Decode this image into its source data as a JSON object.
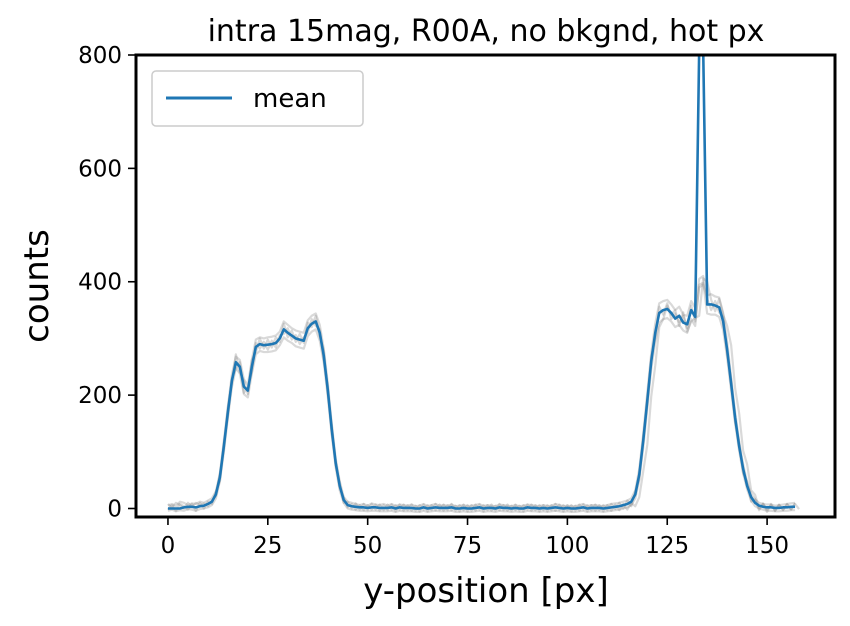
{
  "chart_data": {
    "type": "line",
    "title": "intra 15mag, R00A, no bkgnd, hot px",
    "xlabel": "y-position [px]",
    "ylabel": "counts",
    "xlim": [
      -8,
      167
    ],
    "ylim": [
      -15,
      800
    ],
    "xticks": [
      0,
      25,
      50,
      75,
      100,
      125,
      150
    ],
    "yticks": [
      0,
      200,
      400,
      600,
      800
    ],
    "grid": false,
    "legend": {
      "position": "top-left",
      "entries": [
        "mean"
      ]
    },
    "colors": {
      "mean": "#1f77b4",
      "individual": "#808080"
    },
    "series": [
      {
        "name": "mean",
        "x_start": 0,
        "x_step": 1,
        "values": [
          0,
          0,
          0,
          0,
          2,
          3,
          3,
          2,
          4,
          5,
          8,
          12,
          25,
          55,
          110,
          170,
          225,
          258,
          250,
          215,
          208,
          250,
          285,
          290,
          288,
          289,
          290,
          292,
          300,
          316,
          310,
          305,
          300,
          298,
          296,
          318,
          326,
          330,
          310,
          270,
          210,
          140,
          80,
          40,
          15,
          6,
          4,
          3,
          2,
          2,
          1,
          2,
          2,
          1,
          1,
          1,
          2,
          0,
          2,
          1,
          1,
          1,
          0,
          0,
          2,
          0,
          1,
          2,
          1,
          1,
          1,
          2,
          0,
          0,
          1,
          0,
          0,
          1,
          2,
          0,
          1,
          1,
          0,
          2,
          1,
          1,
          0,
          1,
          0,
          0,
          2,
          1,
          1,
          0,
          1,
          0,
          1,
          2,
          1,
          0,
          1,
          0,
          0,
          1,
          2,
          0,
          1,
          1,
          1,
          0,
          1,
          2,
          3,
          4,
          6,
          8,
          12,
          25,
          60,
          120,
          190,
          260,
          310,
          345,
          350,
          352,
          345,
          335,
          340,
          328,
          325,
          350,
          338,
          810,
          810,
          360,
          360,
          358,
          355,
          330,
          280,
          220,
          160,
          110,
          70,
          40,
          20,
          10,
          5,
          3,
          2,
          2,
          1,
          1,
          2,
          2,
          3,
          3
        ]
      },
      {
        "name": "",
        "x_start": 0,
        "x_step": 1,
        "values": [
          5,
          8,
          4,
          12,
          10,
          6,
          9,
          8,
          12,
          10,
          14,
          18,
          30,
          62,
          120,
          180,
          236,
          268,
          262,
          228,
          218,
          262,
          298,
          302,
          300,
          302,
          303,
          305,
          312,
          330,
          324,
          318,
          314,
          312,
          310,
          332,
          340,
          344,
          324,
          282,
          222,
          150,
          88,
          48,
          20,
          12,
          10,
          8,
          6,
          8,
          5,
          9,
          7,
          6,
          8,
          5,
          8,
          4,
          7,
          6,
          5,
          7,
          4,
          5,
          8,
          4,
          6,
          8,
          5,
          6,
          5,
          7,
          4,
          5,
          6,
          4,
          5,
          6,
          8,
          4,
          6,
          5,
          4,
          7,
          6,
          5,
          4,
          6,
          4,
          5,
          7,
          6,
          5,
          4,
          6,
          4,
          5,
          8,
          6,
          4,
          5,
          4,
          4,
          6,
          8,
          4,
          6,
          6,
          5,
          4,
          6,
          8,
          9,
          10,
          12,
          14,
          18,
          32,
          70,
          132,
          204,
          274,
          326,
          362,
          366,
          368,
          360,
          350,
          356,
          342,
          340,
          366,
          354,
          405,
          410,
          376,
          378,
          374,
          372,
          345,
          294,
          232,
          170,
          118,
          78,
          46,
          26,
          16,
          10,
          8,
          7,
          7,
          5,
          6,
          7,
          8,
          9,
          10
        ]
      },
      {
        "name": "",
        "x_start": 0,
        "x_step": 1,
        "values": [
          -4,
          -2,
          -5,
          -3,
          -4,
          -1,
          -2,
          -4,
          -1,
          0,
          2,
          6,
          18,
          48,
          100,
          160,
          214,
          248,
          238,
          202,
          196,
          238,
          272,
          278,
          276,
          276,
          277,
          279,
          288,
          302,
          296,
          292,
          286,
          284,
          282,
          304,
          312,
          316,
          296,
          258,
          198,
          130,
          72,
          32,
          10,
          0,
          -2,
          -3,
          -4,
          -4,
          -5,
          -4,
          -4,
          -5,
          -5,
          -5,
          -4,
          -6,
          -4,
          -5,
          -5,
          -5,
          -6,
          -6,
          -4,
          -6,
          -5,
          -4,
          -5,
          -5,
          -5,
          -4,
          -6,
          -6,
          -5,
          -6,
          -6,
          -5,
          -4,
          -6,
          -5,
          -5,
          -6,
          -4,
          -5,
          -5,
          -6,
          -5,
          -6,
          -6,
          -4,
          -5,
          -5,
          -6,
          -5,
          -6,
          -5,
          -4,
          -5,
          -6,
          -5,
          -6,
          -6,
          -5,
          -4,
          -6,
          -5,
          -5,
          -5,
          -6,
          -5,
          -4,
          -3,
          -2,
          0,
          2,
          6,
          18,
          50,
          108,
          176,
          246,
          294,
          328,
          334,
          336,
          330,
          320,
          324,
          314,
          310,
          334,
          322,
          395,
          398,
          344,
          342,
          342,
          338,
          315,
          266,
          208,
          150,
          102,
          62,
          34,
          14,
          4,
          0,
          -2,
          -4,
          -4,
          -5,
          -5,
          -4,
          -4,
          -3,
          -3
        ]
      },
      {
        "name": "",
        "x_start": 0,
        "x_step": 1,
        "values": [
          8,
          2,
          10,
          6,
          0,
          10,
          3,
          10,
          6,
          9,
          4,
          14,
          22,
          62,
          104,
          178,
          222,
          272,
          240,
          226,
          202,
          262,
          276,
          300,
          282,
          298,
          284,
          302,
          294,
          326,
          302,
          314,
          294,
          308,
          292,
          328,
          320,
          340,
          304,
          280,
          204,
          148,
          76,
          46,
          10,
          12,
          0,
          9,
          -2,
          8,
          -3,
          8,
          -2,
          7,
          -3,
          7,
          -2,
          6,
          -2,
          7,
          -3,
          7,
          -4,
          6,
          -2,
          6,
          -3,
          8,
          -3,
          7,
          -3,
          8,
          -4,
          6,
          -3,
          6,
          -4,
          7,
          -2,
          6,
          -3,
          7,
          -4,
          8,
          -3,
          7,
          -4,
          7,
          -4,
          6,
          -2,
          7,
          -3,
          6,
          -3,
          6,
          -3,
          8,
          -3,
          6,
          -3,
          6,
          -4,
          7,
          -2,
          6,
          -3,
          7,
          -3,
          6,
          -3,
          8,
          -1,
          10,
          0,
          14,
          4,
          30,
          52,
          128,
          182,
          268,
          300,
          356,
          342,
          362,
          334,
          344,
          328,
          340,
          318,
          358,
          330,
          390,
          395,
          370,
          350,
          366,
          346,
          338,
          272,
          228,
          152,
          118,
          62,
          48,
          12,
          16,
          -3,
          9,
          -6,
          8,
          -4,
          7,
          -2,
          8,
          -1,
          9
        ]
      },
      {
        "name": "",
        "x_start": 0,
        "x_step": 1,
        "values": [
          -2,
          6,
          -4,
          8,
          4,
          -2,
          8,
          -4,
          10,
          0,
          12,
          8,
          30,
          48,
          116,
          162,
          230,
          246,
          258,
          204,
          214,
          240,
          292,
          282,
          294,
          280,
          296,
          284,
          306,
          308,
          318,
          298,
          306,
          290,
          302,
          310,
          334,
          322,
          316,
          262,
          216,
          132,
          84,
          36,
          20,
          2,
          8,
          -2,
          6,
          -3,
          6,
          -2,
          7,
          -4,
          6,
          -3,
          7,
          -5,
          7,
          -4,
          6,
          -4,
          5,
          -5,
          7,
          -5,
          6,
          -3,
          7,
          -4,
          6,
          -3,
          5,
          -5,
          7,
          -5,
          6,
          -4,
          7,
          -5,
          6,
          -4,
          5,
          -3,
          6,
          -4,
          5,
          -3,
          5,
          -5,
          7,
          -4,
          6,
          -5,
          6,
          -5,
          6,
          -4,
          7,
          -5,
          6,
          -5,
          5,
          -4,
          7,
          -5,
          6,
          -4,
          6,
          -5,
          6,
          -4,
          7,
          -3,
          8,
          -2,
          10,
          4,
          20,
          66,
          112,
          198,
          252,
          320,
          334,
          358,
          342,
          350,
          322,
          346,
          312,
          330,
          336,
          340,
          406,
          400,
          368,
          348,
          370,
          342,
          322,
          288,
          212,
          168,
          102,
          78,
          32,
          24,
          0,
          8,
          -2,
          6,
          -4,
          6,
          -3,
          7,
          -2,
          8,
          -1
        ]
      }
    ]
  }
}
